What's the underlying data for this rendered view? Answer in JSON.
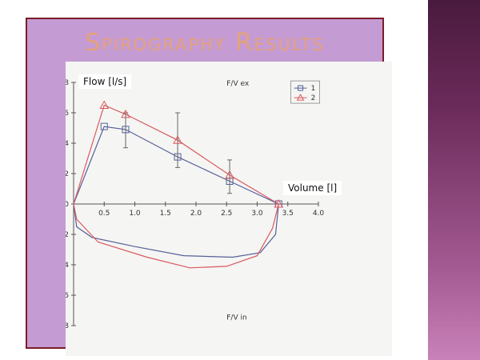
{
  "slide": {
    "title": "Spirography Results",
    "flow_label": "Flow [l/s]",
    "volume_label": "Volume [l]",
    "expiration_label": "F/V ex",
    "inspiration_label": "F/V in"
  },
  "colors": {
    "slide_background": "#c59bd3",
    "slide_border": "#7a1e28",
    "title_color": "#e4a27a",
    "series_1": "#55609a",
    "series_2": "#d9595f",
    "side_bar_dark": "#4a1a3e",
    "side_bar_light": "#c982b9"
  },
  "chart_data": {
    "type": "line",
    "x_ticks": [
      "0.5",
      "1.0",
      "1.5",
      "2.0",
      "2.5",
      "3.0",
      "3.5",
      "4.0"
    ],
    "x_tick_values": [
      0.5,
      1.0,
      1.5,
      2.0,
      2.5,
      3.0,
      3.5,
      4.0
    ],
    "y_ticks_top": [
      "8",
      "6",
      "4",
      "2",
      "0"
    ],
    "y_ticks_bottom": [
      "2",
      "4",
      "6",
      "8"
    ],
    "xlim": [
      0,
      4.0
    ],
    "ylim": [
      -8,
      8
    ],
    "legend": [
      {
        "label": "1",
        "marker": "square"
      },
      {
        "label": "2",
        "marker": "triangle"
      }
    ],
    "legend_position": "top-right",
    "series": [
      {
        "name": "1",
        "marker": "square",
        "expiration": [
          [
            0,
            0
          ],
          [
            0.5,
            5.1
          ],
          [
            0.85,
            4.9
          ],
          [
            1.7,
            3.1
          ],
          [
            2.55,
            1.5
          ],
          [
            3.35,
            0
          ]
        ],
        "inspiration": [
          [
            0,
            0
          ],
          [
            0.05,
            -1.5
          ],
          [
            0.3,
            -2.2
          ],
          [
            1.0,
            -2.8
          ],
          [
            1.8,
            -3.4
          ],
          [
            2.6,
            -3.5
          ],
          [
            3.05,
            -3.2
          ],
          [
            3.3,
            -2.0
          ],
          [
            3.35,
            0
          ]
        ]
      },
      {
        "name": "2",
        "marker": "triangle",
        "expiration": [
          [
            0,
            0
          ],
          [
            0.5,
            6.5
          ],
          [
            0.85,
            5.9
          ],
          [
            1.7,
            4.2
          ],
          [
            2.55,
            1.9
          ],
          [
            3.35,
            0
          ]
        ],
        "inspiration": [
          [
            0,
            0
          ],
          [
            0.05,
            -1.0
          ],
          [
            0.4,
            -2.5
          ],
          [
            1.2,
            -3.5
          ],
          [
            1.9,
            -4.2
          ],
          [
            2.5,
            -4.1
          ],
          [
            3.0,
            -3.4
          ],
          [
            3.25,
            -1.6
          ],
          [
            3.35,
            0
          ]
        ]
      }
    ],
    "error_bars": [
      {
        "x": 0.85,
        "low": 3.7,
        "high": 6.0
      },
      {
        "x": 1.7,
        "low": 2.4,
        "high": 6.0
      },
      {
        "x": 2.55,
        "low": 0.7,
        "high": 2.9
      }
    ]
  }
}
